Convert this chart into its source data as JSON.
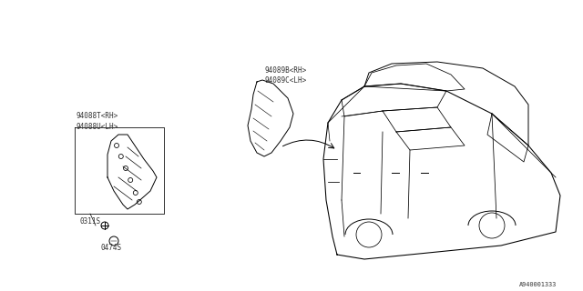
{
  "background_color": "#ffffff",
  "fig_width": 6.4,
  "fig_height": 3.2,
  "dpi": 100,
  "part_labels": {
    "left_trim_top": "94088T<RH>",
    "left_trim_bot": "94088U<LH>",
    "center_trim_top": "94089B<RH>",
    "center_trim_bot": "94089C<LH>",
    "fastener1": "0311S",
    "fastener2": "0474S"
  },
  "diagram_number": "A940001333",
  "line_color": "#000000",
  "line_width": 0.7,
  "font_size": 5.5,
  "text_color": "#333333"
}
